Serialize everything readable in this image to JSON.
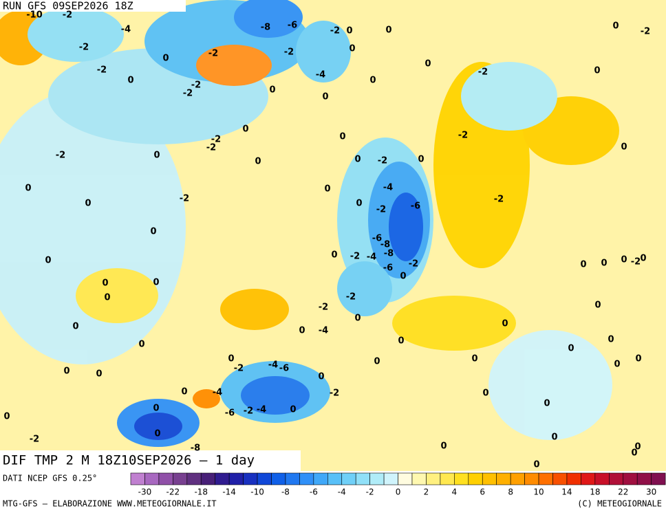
{
  "header": {
    "run": "RUN GFS 09SEP2026 18Z"
  },
  "product": {
    "title": "DIF TMP 2 M 18Z10SEP2026 — 1 day"
  },
  "footer": {
    "source": "DATI NCEP GFS 0.25°",
    "credit": "MTG-GFS — ELABORAZIONE WWW.METEOGIORNALE.IT",
    "copyright": "(C) METEOGIORNALE"
  },
  "legend": {
    "ticks": [
      -30,
      -22,
      -18,
      -14,
      -10,
      -8,
      -6,
      -4,
      -2,
      0,
      2,
      4,
      6,
      8,
      10,
      14,
      18,
      22,
      30
    ],
    "colors": [
      "#c080d0",
      "#a868c0",
      "#9050a8",
      "#784090",
      "#603080",
      "#482078",
      "#301c90",
      "#2020a8",
      "#1830c0",
      "#1048d8",
      "#1060e8",
      "#2078f0",
      "#3090f8",
      "#40a8f8",
      "#58c0f8",
      "#70d0f8",
      "#90e0f8",
      "#b0ecf8",
      "#d0f4fc",
      "#fffce0",
      "#fff8b0",
      "#fff080",
      "#ffe850",
      "#ffe020",
      "#ffd000",
      "#ffc000",
      "#ffb000",
      "#ffa000",
      "#ff8c00",
      "#ff7000",
      "#f85000",
      "#f03000",
      "#e01818",
      "#c81028",
      "#b01038",
      "#a01040",
      "#901048",
      "#801050"
    ]
  },
  "contour_labels": [
    -10,
    -2,
    -4,
    -2,
    -2,
    0,
    0,
    -2,
    -8,
    -6,
    -2,
    -2,
    0,
    0,
    0,
    -4,
    0,
    0,
    0,
    -2,
    -2,
    0,
    -2,
    0,
    0,
    -2,
    -2,
    -2,
    0,
    0,
    -2,
    0,
    0,
    -2,
    0,
    0,
    0,
    -2,
    0,
    -2,
    0,
    -4,
    0,
    -6,
    -2,
    0,
    -2,
    0,
    -6,
    -8,
    -8,
    -2,
    -4,
    -6,
    0,
    -2,
    0,
    0,
    0,
    0,
    0,
    0,
    0,
    0,
    -2,
    0,
    -2,
    -2,
    0,
    0,
    0,
    0,
    0,
    -4,
    0,
    0,
    0,
    0,
    -2,
    -4,
    -6,
    0,
    0,
    0,
    0,
    0,
    0,
    0,
    0,
    -2,
    0,
    0,
    -4,
    0,
    -2,
    -4,
    -6,
    0,
    0,
    0,
    0,
    -8,
    -2,
    0,
    0,
    0,
    0,
    0,
    0
  ]
}
